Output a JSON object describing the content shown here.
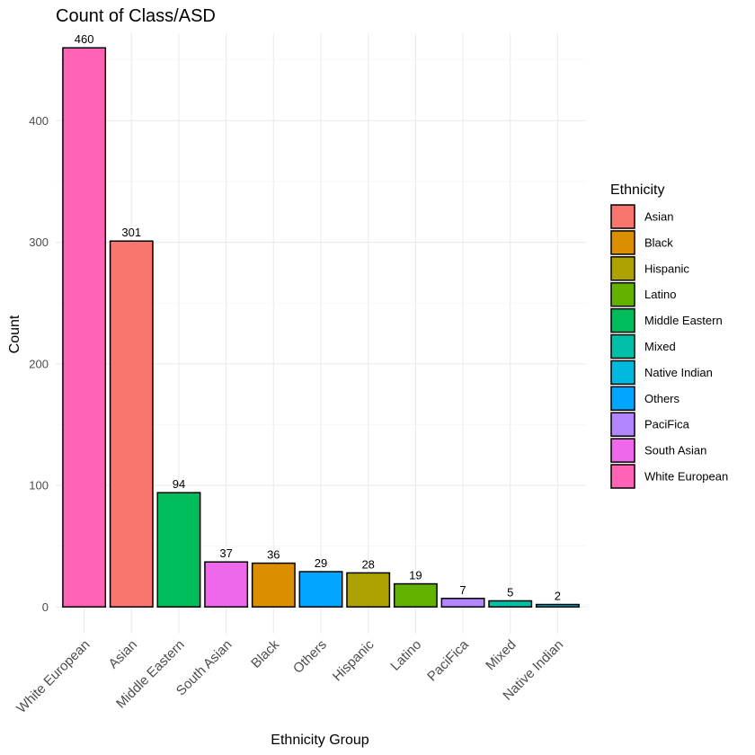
{
  "chart_data": {
    "type": "bar",
    "title": "Count of Class/ASD",
    "xlabel": "Ethnicity Group",
    "ylabel": "Count",
    "ylim": [
      -22,
      472
    ],
    "yticks": [
      0,
      100,
      200,
      300,
      400
    ],
    "grid": true,
    "legend_position": "right",
    "legend_title": "Ethnicity",
    "categories": [
      "White European",
      "Asian",
      "Middle Eastern",
      "South Asian",
      "Black",
      "Others",
      "Hispanic",
      "Latino",
      "PaciFica",
      "Mixed",
      "Native Indian"
    ],
    "values": [
      460,
      301,
      94,
      37,
      36,
      29,
      28,
      19,
      7,
      5,
      2
    ],
    "legend_entries": [
      "Asian",
      "Black",
      "Hispanic",
      "Latino",
      "Middle Eastern",
      "Mixed",
      "Native Indian",
      "Others",
      "PaciFica",
      "South Asian",
      "White European"
    ],
    "colors": {
      "Asian": "#F8766D",
      "Black": "#DB8E00",
      "Hispanic": "#AEA200",
      "Latino": "#64B200",
      "Middle Eastern": "#00BD5C",
      "Mixed": "#00C1A7",
      "Native Indian": "#00BADE",
      "Others": "#00A6FF",
      "PaciFica": "#B385FF",
      "South Asian": "#EF67EB",
      "White European": "#FF63B6"
    }
  }
}
